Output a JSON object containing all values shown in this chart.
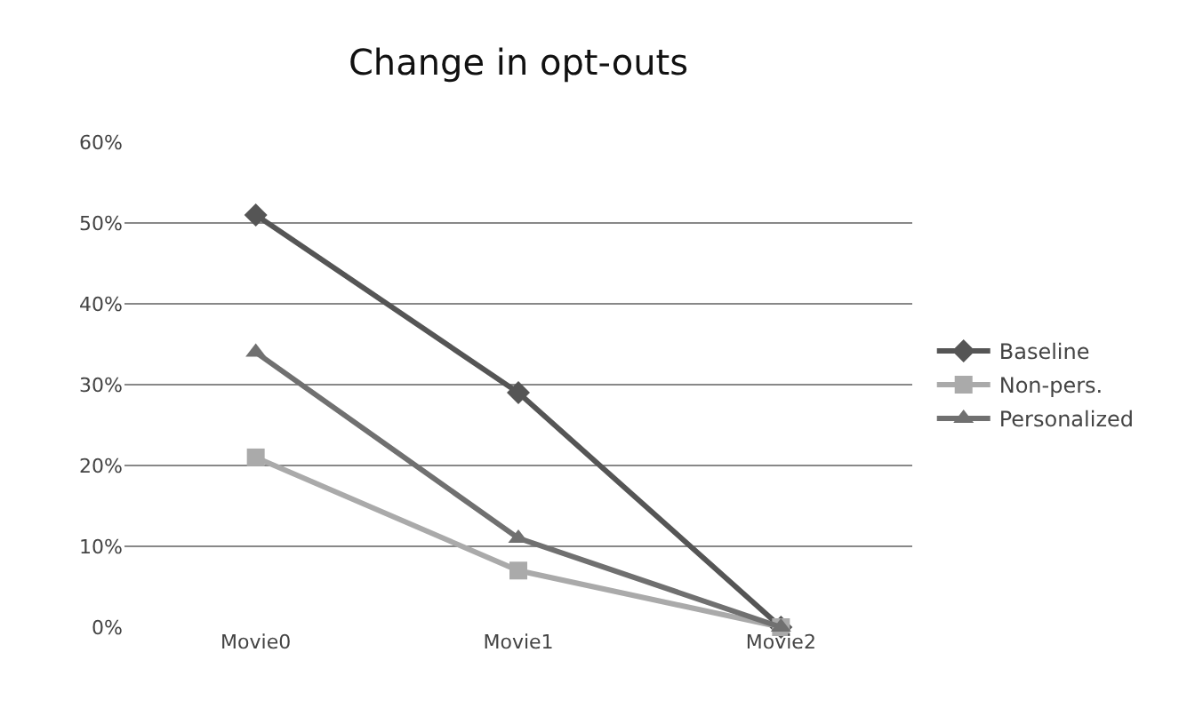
{
  "chart_data": {
    "type": "line",
    "title": "Change in opt-outs",
    "categories": [
      "Movie0",
      "Movie1",
      "Movie2"
    ],
    "series": [
      {
        "name": "Baseline",
        "color": "#555555",
        "marker": "diamond",
        "values": [
          51,
          29,
          0
        ]
      },
      {
        "name": "Non-pers.",
        "color": "#aaaaaa",
        "marker": "square",
        "values": [
          21,
          7,
          0
        ]
      },
      {
        "name": "Personalized",
        "color": "#707070",
        "marker": "triangle",
        "values": [
          34,
          11,
          0
        ]
      }
    ],
    "ylim": [
      0,
      60
    ],
    "yticks": [
      {
        "value": 0,
        "label": "0%"
      },
      {
        "value": 10,
        "label": "10%"
      },
      {
        "value": 20,
        "label": "20%"
      },
      {
        "value": 30,
        "label": "30%"
      },
      {
        "value": 40,
        "label": "40%"
      },
      {
        "value": 50,
        "label": "50%"
      },
      {
        "value": 60,
        "label": "60%"
      }
    ],
    "grid": "y",
    "legend": "right",
    "line_style": "solid"
  }
}
